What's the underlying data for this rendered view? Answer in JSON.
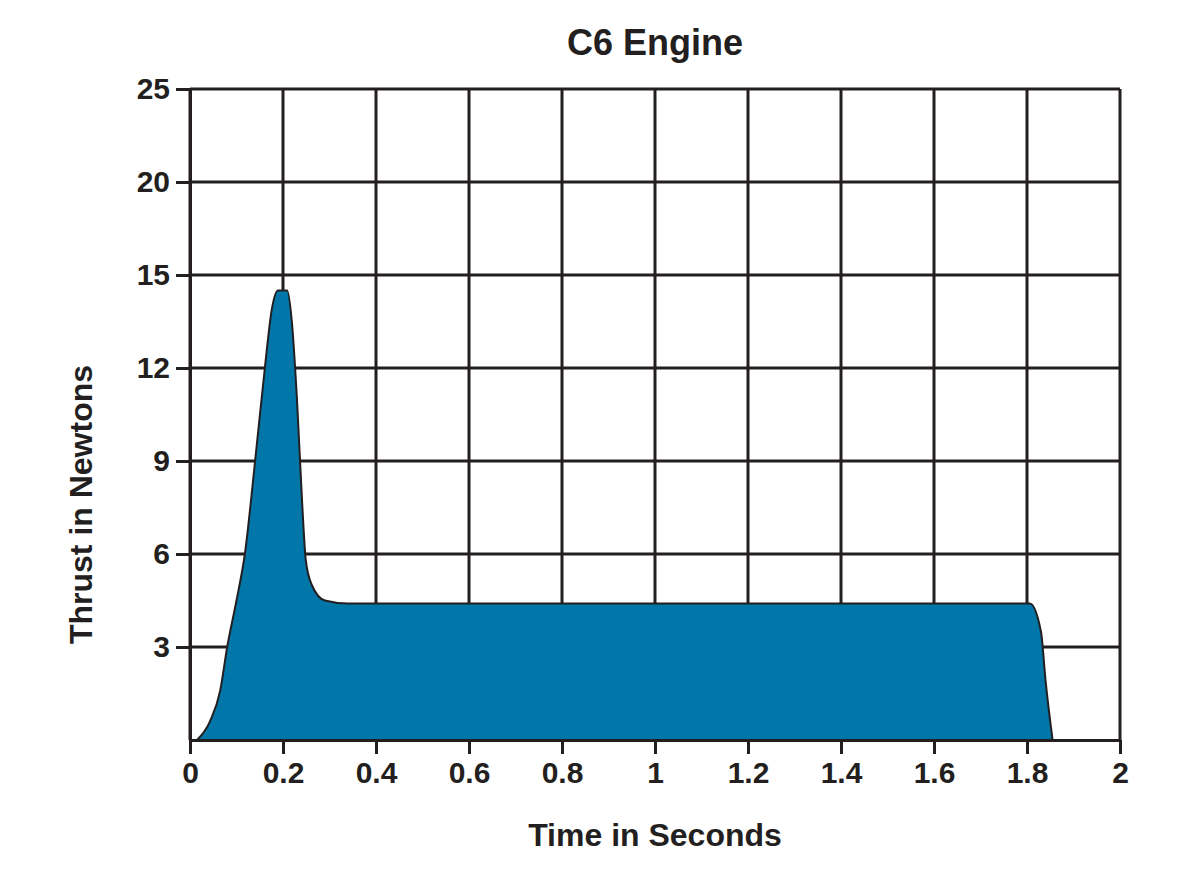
{
  "chart_data": {
    "type": "area",
    "title": "C6 Engine",
    "x_label": "Time in Seconds",
    "y_label": "Thrust in Newtons",
    "x": [
      0.015,
      0.043,
      0.065,
      0.08,
      0.1,
      0.118,
      0.14,
      0.161,
      0.176,
      0.189,
      0.209,
      0.219,
      0.23,
      0.241,
      0.249,
      0.262,
      0.29,
      0.34,
      1.806,
      1.83,
      1.84,
      1.855
    ],
    "values": [
      0,
      0.6,
      1.6,
      3,
      4.5,
      6,
      9,
      12,
      13.9,
      14.5,
      14.5,
      13.5,
      11,
      7.7,
      5.8,
      5.0,
      4.5,
      4.4,
      4.4,
      3.5,
      1.9,
      0
    ],
    "color": "#0077a8",
    "xlim": [
      0,
      2
    ],
    "ylim": [
      0,
      25
    ],
    "xticks": [
      0,
      0.2,
      0.4,
      0.6,
      0.8,
      1,
      1.2,
      1.4,
      1.6,
      1.8,
      2
    ],
    "yticks": [
      3,
      6,
      9,
      12,
      15,
      20,
      25
    ],
    "grid": true
  }
}
